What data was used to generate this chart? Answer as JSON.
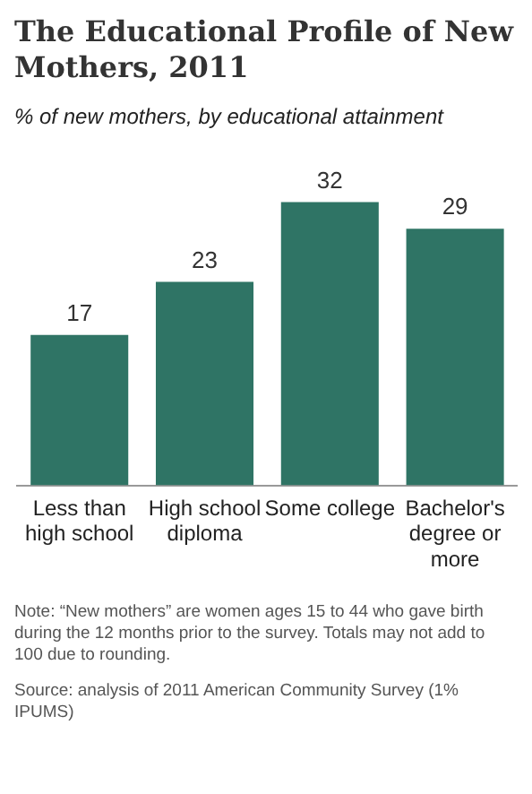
{
  "chart_data": {
    "type": "bar",
    "title": "The Educational Profile of New Mothers, 2011",
    "subtitle": "% of new mothers, by educational attainment",
    "categories": [
      "Less than high school",
      "High school diploma",
      "Some college",
      "Bachelor's degree or more"
    ],
    "values": [
      17,
      23,
      32,
      29
    ],
    "color": "#2f7465",
    "data_labels": true,
    "grid": false,
    "annotations": [
      "Note: “New mothers” are women ages 15 to 44 who gave birth during the 12 months prior to the survey. Totals may not add to 100 due to rounding.",
      "Source: analysis of 2011 American Community Survey (1% IPUMS)"
    ]
  }
}
